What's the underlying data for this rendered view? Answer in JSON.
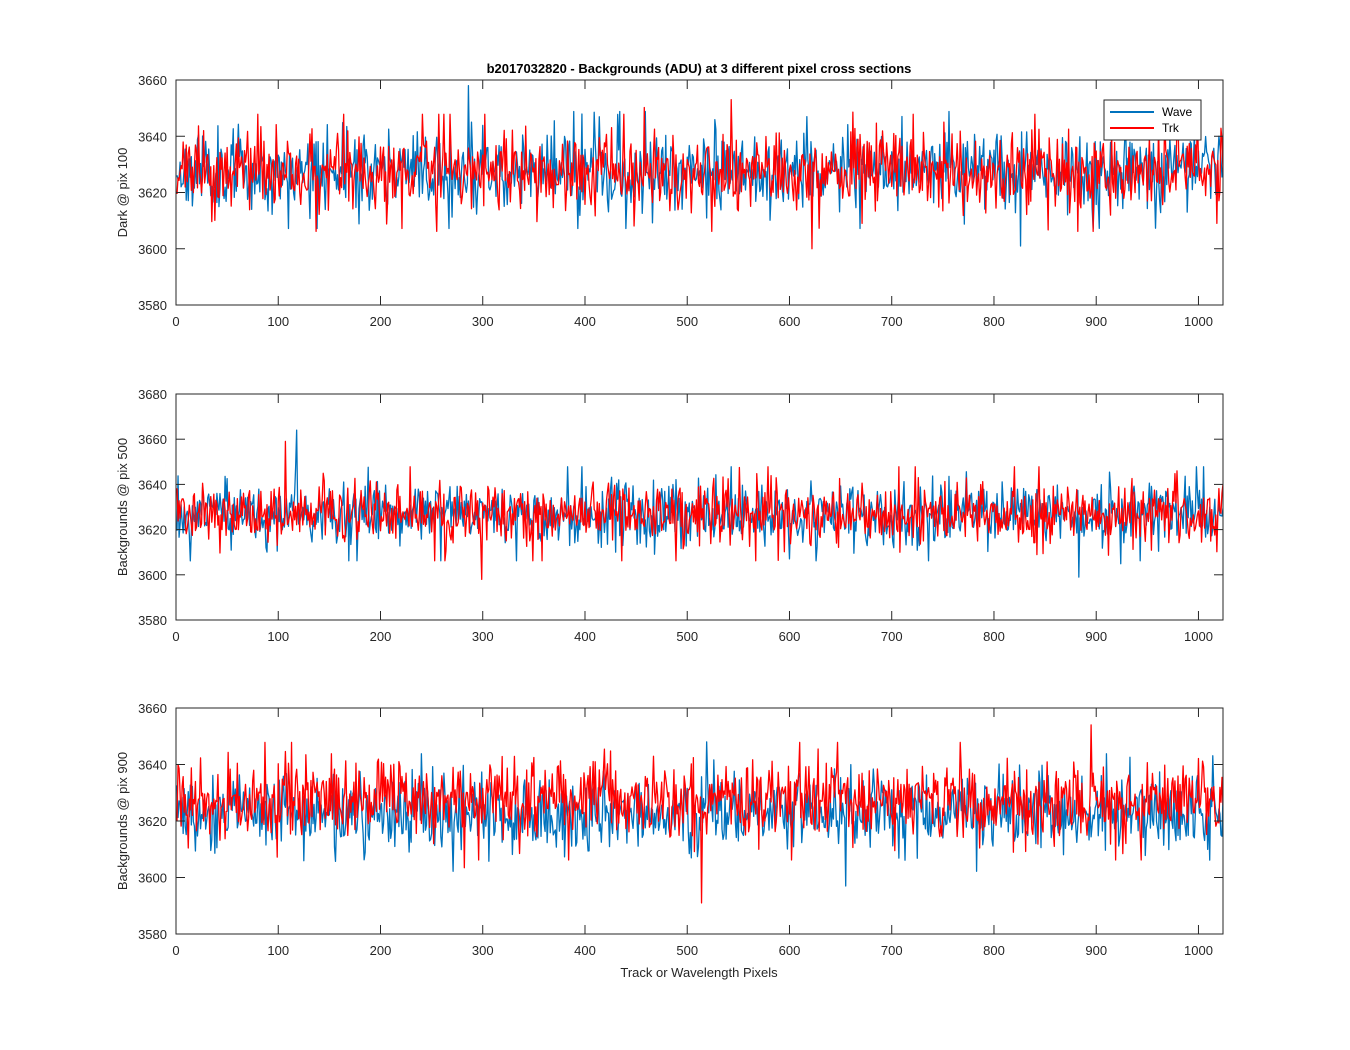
{
  "figure": {
    "title": "b2017032820 - Backgrounds (ADU) at 3 different pixel cross sections",
    "xlabel": "Track or Wavelength Pixels"
  },
  "colors": {
    "wave": "#0072BD",
    "trk": "#FF0000",
    "axes": "#262626"
  },
  "chart_data": [
    {
      "type": "line",
      "title": "b2017032820 - Backgrounds (ADU) at 3 different pixel cross sections",
      "ylabel": "Dark @ pix 100",
      "xlabel": "",
      "xlim": [
        0,
        1024
      ],
      "ylim": [
        3580,
        3660
      ],
      "xticks": [
        "0",
        "100",
        "200",
        "300",
        "400",
        "500",
        "600",
        "700",
        "800",
        "900",
        "1000"
      ],
      "yticks": [
        "3580",
        "3600",
        "3620",
        "3640",
        "3660"
      ],
      "legend": {
        "position": "top-right",
        "entries": [
          "Wave",
          "Trk"
        ]
      },
      "series": [
        {
          "name": "Wave",
          "color": "#0072BD",
          "n_points": 1024,
          "mean": 3628,
          "spread": 8,
          "min": 3601,
          "max": 3658,
          "seed": 11
        },
        {
          "name": "Trk",
          "color": "#FF0000",
          "n_points": 1024,
          "mean": 3627,
          "spread": 8,
          "min": 3600,
          "max": 3653,
          "seed": 23
        }
      ]
    },
    {
      "type": "line",
      "ylabel": "Backgrounds @ pix 500",
      "xlabel": "",
      "xlim": [
        0,
        1024
      ],
      "ylim": [
        3580,
        3680
      ],
      "xticks": [
        "0",
        "100",
        "200",
        "300",
        "400",
        "500",
        "600",
        "700",
        "800",
        "900",
        "1000"
      ],
      "yticks": [
        "3580",
        "3600",
        "3620",
        "3640",
        "3660",
        "3680"
      ],
      "series": [
        {
          "name": "Wave",
          "color": "#0072BD",
          "n_points": 1024,
          "mean": 3627,
          "spread": 8,
          "min": 3599,
          "max": 3664,
          "seed": 37
        },
        {
          "name": "Trk",
          "color": "#FF0000",
          "n_points": 1024,
          "mean": 3627,
          "spread": 8,
          "min": 3598,
          "max": 3659,
          "seed": 41
        }
      ]
    },
    {
      "type": "line",
      "ylabel": "Backgrounds @ pix 900",
      "xlabel": "Track or Wavelength Pixels",
      "xlim": [
        0,
        1024
      ],
      "ylim": [
        3580,
        3660
      ],
      "xticks": [
        "0",
        "100",
        "200",
        "300",
        "400",
        "500",
        "600",
        "700",
        "800",
        "900",
        "1000"
      ],
      "yticks": [
        "3580",
        "3600",
        "3620",
        "3640",
        "3660"
      ],
      "series": [
        {
          "name": "Wave",
          "color": "#0072BD",
          "n_points": 1024,
          "mean": 3623,
          "spread": 8,
          "min": 3597,
          "max": 3648,
          "seed": 53
        },
        {
          "name": "Trk",
          "color": "#FF0000",
          "n_points": 1024,
          "mean": 3627,
          "spread": 8,
          "min": 3591,
          "max": 3654,
          "seed": 67
        }
      ]
    }
  ]
}
